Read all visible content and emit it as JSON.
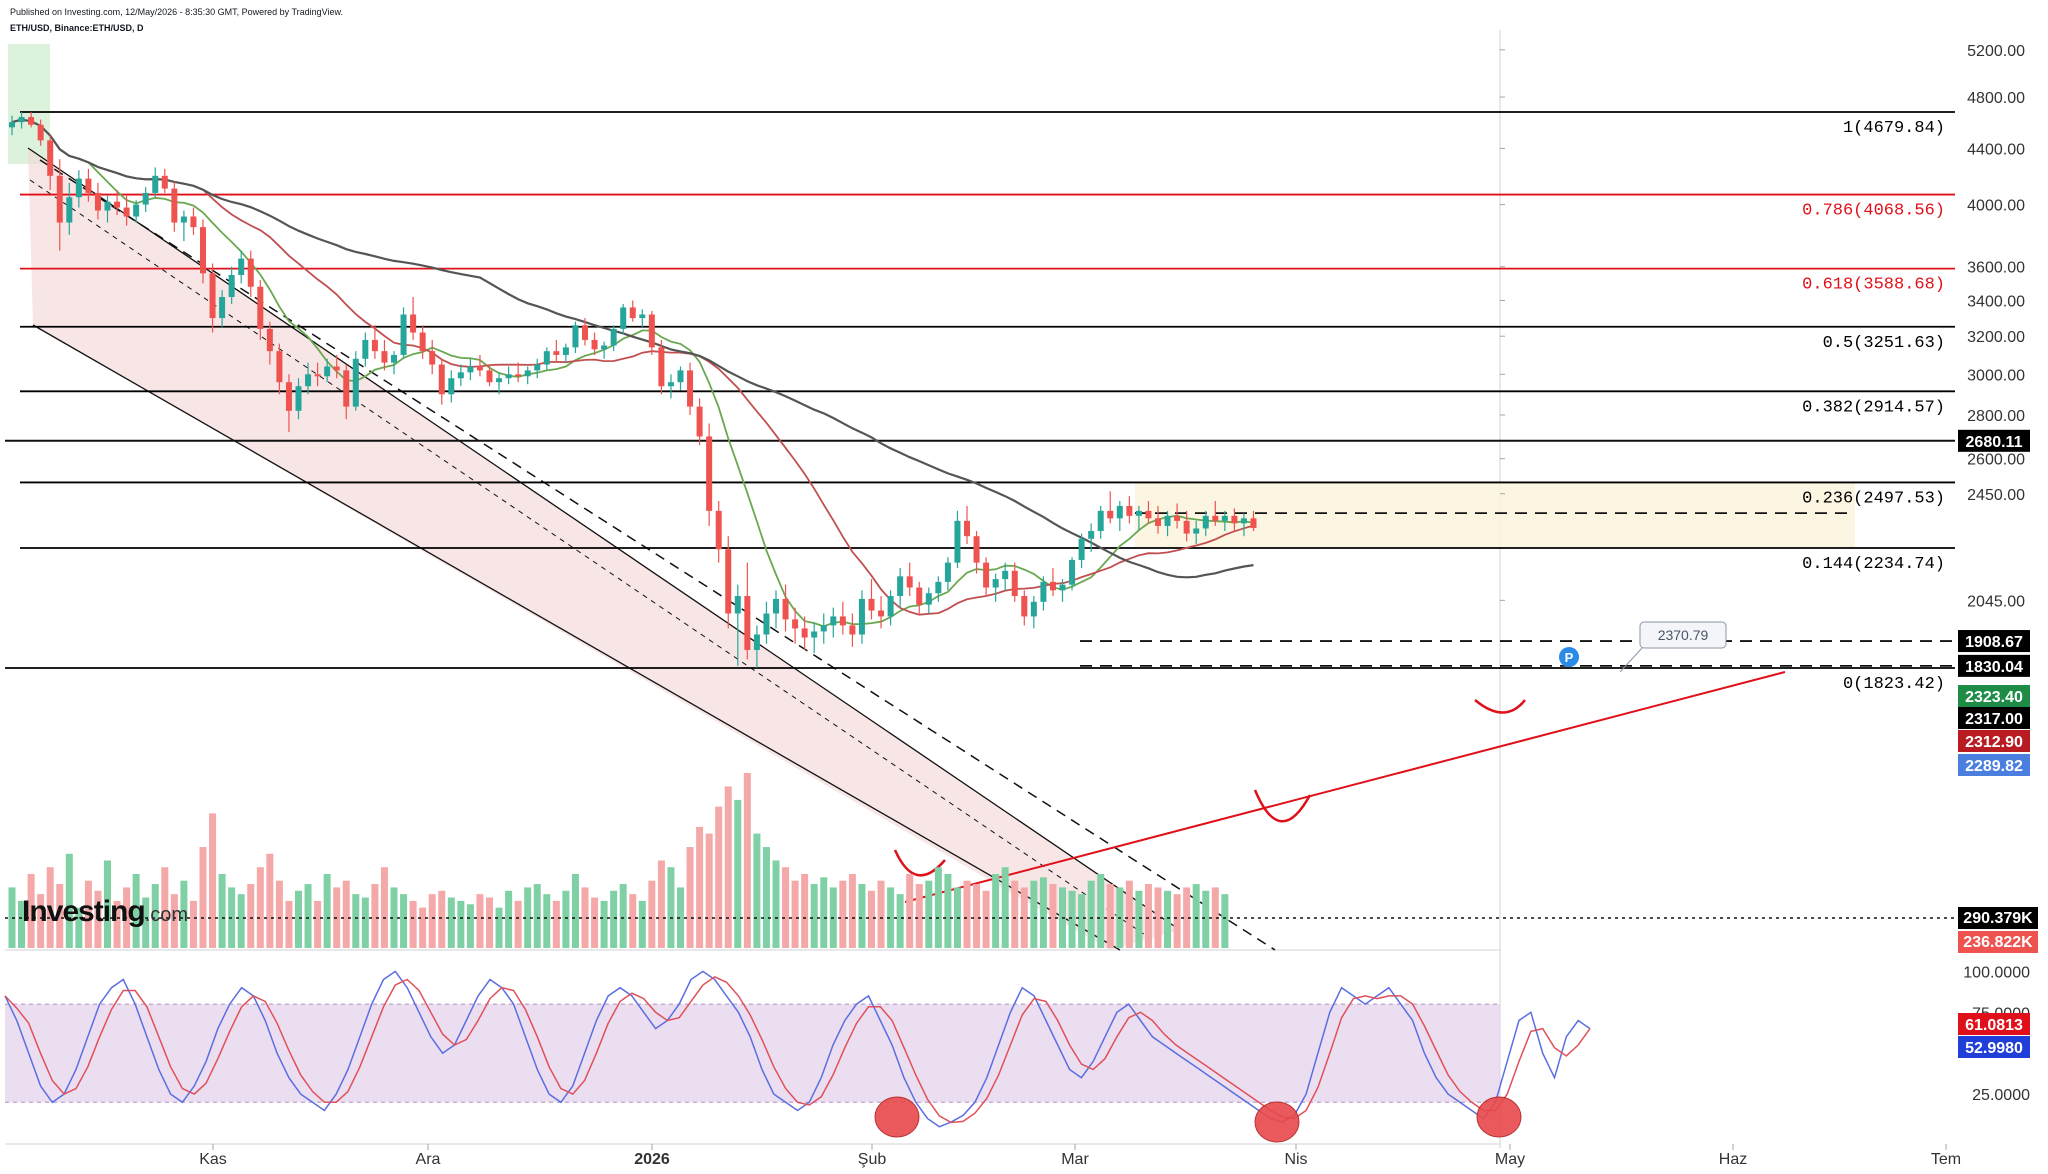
{
  "header": {
    "published": "Published on Investing.com, 12/May/2026 - 8:35:30 GMT, Powered by TradingView.",
    "symbol": "ETH/USD, Binance:ETH/USD, D"
  },
  "logo": {
    "brand": "Investing",
    "suffix": ".com"
  },
  "colors": {
    "up": "#26a69a",
    "down": "#ef5350",
    "fib_black": "#000000",
    "fib_red": "#e0101a",
    "channel_fill": "#f3d6d6",
    "range_fill": "#fbf3dd",
    "ma_fast": "#6aa84f",
    "ma_mid": "#c05050",
    "ma_slow": "#555555",
    "stoch_k": "#5b6ee1",
    "stoch_d": "#e0505a",
    "stoch_band": "#e4d3ec",
    "vol_up": "#7fd1a5",
    "vol_down": "#f4a8a8"
  },
  "chart_data": {
    "type": "candlestick",
    "symbol": "ETH/USD",
    "interval": "D",
    "y_scale": "log",
    "x_axis_labels": [
      "Kas",
      "Ara",
      "2026",
      "Şub",
      "Mar",
      "Nis",
      "May",
      "Haz",
      "Tem"
    ],
    "y_axis_labels": [
      "5200.00",
      "4800.00",
      "4400.00",
      "4000.00",
      "3600.00",
      "3400.00",
      "3200.00",
      "3000.00",
      "2800.00",
      "2600.00",
      "2450.00",
      "2045.00"
    ],
    "fib_levels": [
      {
        "label": "1(4679.84)",
        "ratio": "1",
        "value": 4679.84,
        "color": "black"
      },
      {
        "label": "0.786(4068.56)",
        "ratio": "0.786",
        "value": 4068.56,
        "color": "red"
      },
      {
        "label": "0.618(3588.68)",
        "ratio": "0.618",
        "value": 3588.68,
        "color": "red"
      },
      {
        "label": "0.5(3251.63)",
        "ratio": "0.5",
        "value": 3251.63,
        "color": "black"
      },
      {
        "label": "0.382(2914.57)",
        "ratio": "0.382",
        "value": 2914.57,
        "color": "black"
      },
      {
        "label": "0.236(2497.53)",
        "ratio": "0.236",
        "value": 2497.53,
        "color": "black"
      },
      {
        "label": "0.144(2234.74)",
        "ratio": "0.144",
        "value": 2234.74,
        "color": "black"
      },
      {
        "label": "0(1823.42)",
        "ratio": "0",
        "value": 1823.42,
        "color": "black"
      }
    ],
    "horizontal_levels": [
      {
        "label": "2680.11",
        "value": 2680.11,
        "style": "solid"
      },
      {
        "label": "1908.67",
        "value": 1908.67,
        "style": "dashed"
      },
      {
        "label": "1830.04",
        "value": 1830.04,
        "style": "dashed"
      },
      {
        "label": "2370.79",
        "value": 2370.79,
        "style": "dashed"
      }
    ],
    "price_tags": [
      {
        "label": "2323.40",
        "value": 2323.4,
        "color": "#1e8c47"
      },
      {
        "label": "2317.00",
        "value": 2317.0,
        "color": "#000000"
      },
      {
        "label": "2312.90",
        "value": 2312.9,
        "color": "#b81c22"
      },
      {
        "label": "2289.82",
        "value": 2289.82,
        "color": "#4a7fe0"
      }
    ],
    "callout": "2370.79",
    "range_box": {
      "high": 2497.53,
      "low": 2234.74
    },
    "ohlc": [
      [
        4560,
        4650,
        4500,
        4600
      ],
      [
        4600,
        4680,
        4550,
        4640
      ],
      [
        4640,
        4679,
        4560,
        4580
      ],
      [
        4580,
        4620,
        4420,
        4460
      ],
      [
        4460,
        4500,
        4100,
        4200
      ],
      [
        4200,
        4320,
        3700,
        3880
      ],
      [
        3880,
        4150,
        3800,
        4050
      ],
      [
        4050,
        4240,
        3980,
        4180
      ],
      [
        4180,
        4250,
        4020,
        4080
      ],
      [
        4080,
        4150,
        3900,
        3960
      ],
      [
        3960,
        4060,
        3880,
        4020
      ],
      [
        4020,
        4100,
        3930,
        3980
      ],
      [
        3980,
        4060,
        3860,
        3920
      ],
      [
        3920,
        4030,
        3880,
        4000
      ],
      [
        4000,
        4120,
        3950,
        4080
      ],
      [
        4080,
        4260,
        4050,
        4200
      ],
      [
        4200,
        4250,
        4080,
        4110
      ],
      [
        4110,
        4160,
        3820,
        3880
      ],
      [
        3880,
        3960,
        3760,
        3920
      ],
      [
        3920,
        3980,
        3800,
        3850
      ],
      [
        3850,
        3900,
        3500,
        3560
      ],
      [
        3560,
        3620,
        3220,
        3300
      ],
      [
        3300,
        3460,
        3250,
        3420
      ],
      [
        3420,
        3600,
        3380,
        3550
      ],
      [
        3550,
        3700,
        3500,
        3650
      ],
      [
        3650,
        3700,
        3420,
        3480
      ],
      [
        3480,
        3520,
        3180,
        3240
      ],
      [
        3240,
        3280,
        3050,
        3120
      ],
      [
        3120,
        3160,
        2900,
        2960
      ],
      [
        2960,
        3000,
        2720,
        2820
      ],
      [
        2820,
        2980,
        2780,
        2940
      ],
      [
        2940,
        3060,
        2900,
        3000
      ],
      [
        3000,
        3060,
        2940,
        2990
      ],
      [
        2990,
        3080,
        2960,
        3040
      ],
      [
        3040,
        3100,
        2980,
        3020
      ],
      [
        3020,
        3050,
        2780,
        2840
      ],
      [
        2840,
        3120,
        2820,
        3080
      ],
      [
        3080,
        3220,
        3040,
        3180
      ],
      [
        3180,
        3260,
        3080,
        3120
      ],
      [
        3120,
        3180,
        3020,
        3060
      ],
      [
        3060,
        3120,
        3000,
        3100
      ],
      [
        3100,
        3360,
        3080,
        3320
      ],
      [
        3320,
        3420,
        3180,
        3220
      ],
      [
        3220,
        3260,
        3080,
        3120
      ],
      [
        3120,
        3180,
        3000,
        3050
      ],
      [
        3050,
        3080,
        2850,
        2900
      ],
      [
        2900,
        3020,
        2860,
        2980
      ],
      [
        2980,
        3050,
        2940,
        3010
      ],
      [
        3010,
        3080,
        2970,
        3040
      ],
      [
        3040,
        3100,
        2990,
        3020
      ],
      [
        3020,
        3050,
        2940,
        2960
      ],
      [
        2960,
        3010,
        2900,
        2980
      ],
      [
        2980,
        3040,
        2950,
        3000
      ],
      [
        3000,
        3060,
        2960,
        2990
      ],
      [
        2990,
        3040,
        2950,
        3020
      ],
      [
        3020,
        3080,
        2980,
        3050
      ],
      [
        3050,
        3140,
        3020,
        3120
      ],
      [
        3120,
        3180,
        3060,
        3100
      ],
      [
        3100,
        3160,
        3060,
        3140
      ],
      [
        3140,
        3280,
        3110,
        3260
      ],
      [
        3260,
        3300,
        3150,
        3180
      ],
      [
        3180,
        3220,
        3100,
        3130
      ],
      [
        3130,
        3170,
        3080,
        3150
      ],
      [
        3150,
        3260,
        3120,
        3240
      ],
      [
        3240,
        3380,
        3210,
        3360
      ],
      [
        3360,
        3400,
        3280,
        3300
      ],
      [
        3300,
        3350,
        3250,
        3320
      ],
      [
        3320,
        3340,
        3100,
        3140
      ],
      [
        3140,
        3180,
        2900,
        2940
      ],
      [
        2940,
        3000,
        2880,
        2960
      ],
      [
        2960,
        3040,
        2920,
        3020
      ],
      [
        3020,
        3060,
        2800,
        2840
      ],
      [
        2840,
        2880,
        2660,
        2700
      ],
      [
        2700,
        2760,
        2320,
        2380
      ],
      [
        2380,
        2420,
        2180,
        2230
      ],
      [
        2230,
        2280,
        1950,
        2000
      ],
      [
        2000,
        2100,
        1830,
        2060
      ],
      [
        2060,
        2180,
        1850,
        1880
      ],
      [
        1880,
        1960,
        1824,
        1930
      ],
      [
        1930,
        2040,
        1900,
        2000
      ],
      [
        2000,
        2080,
        1950,
        2050
      ],
      [
        2050,
        2100,
        1940,
        1980
      ],
      [
        1980,
        2020,
        1900,
        1950
      ],
      [
        1950,
        1990,
        1880,
        1920
      ],
      [
        1920,
        1970,
        1870,
        1940
      ],
      [
        1940,
        2000,
        1900,
        1960
      ],
      [
        1960,
        2020,
        1920,
        1990
      ],
      [
        1990,
        2040,
        1930,
        1960
      ],
      [
        1960,
        2000,
        1890,
        1930
      ],
      [
        1930,
        2080,
        1900,
        2050
      ],
      [
        2050,
        2120,
        1980,
        2010
      ],
      [
        2010,
        2060,
        1950,
        1990
      ],
      [
        1990,
        2080,
        1960,
        2060
      ],
      [
        2060,
        2160,
        2020,
        2130
      ],
      [
        2130,
        2180,
        2060,
        2090
      ],
      [
        2090,
        2110,
        2000,
        2030
      ],
      [
        2030,
        2090,
        2000,
        2070
      ],
      [
        2070,
        2130,
        2040,
        2110
      ],
      [
        2110,
        2200,
        2080,
        2180
      ],
      [
        2180,
        2380,
        2160,
        2340
      ],
      [
        2340,
        2400,
        2250,
        2280
      ],
      [
        2280,
        2300,
        2140,
        2180
      ],
      [
        2180,
        2200,
        2060,
        2090
      ],
      [
        2090,
        2140,
        2040,
        2120
      ],
      [
        2120,
        2180,
        2080,
        2150
      ],
      [
        2150,
        2180,
        2040,
        2060
      ],
      [
        2060,
        2080,
        1960,
        1990
      ],
      [
        1990,
        2060,
        1950,
        2040
      ],
      [
        2040,
        2130,
        2010,
        2110
      ],
      [
        2110,
        2160,
        2060,
        2080
      ],
      [
        2080,
        2120,
        2040,
        2100
      ],
      [
        2100,
        2200,
        2080,
        2190
      ],
      [
        2190,
        2290,
        2160,
        2270
      ],
      [
        2270,
        2330,
        2220,
        2300
      ],
      [
        2300,
        2400,
        2270,
        2380
      ],
      [
        2380,
        2460,
        2330,
        2350
      ],
      [
        2350,
        2420,
        2300,
        2400
      ],
      [
        2400,
        2440,
        2330,
        2360
      ],
      [
        2360,
        2400,
        2300,
        2380
      ],
      [
        2380,
        2420,
        2330,
        2350
      ],
      [
        2350,
        2400,
        2290,
        2320
      ],
      [
        2320,
        2380,
        2280,
        2360
      ],
      [
        2360,
        2410,
        2310,
        2340
      ],
      [
        2340,
        2380,
        2260,
        2290
      ],
      [
        2290,
        2340,
        2250,
        2310
      ],
      [
        2310,
        2380,
        2280,
        2360
      ],
      [
        2360,
        2420,
        2320,
        2340
      ],
      [
        2340,
        2380,
        2300,
        2360
      ],
      [
        2360,
        2390,
        2300,
        2330
      ],
      [
        2330,
        2370,
        2280,
        2350
      ],
      [
        2350,
        2380,
        2300,
        2312
      ]
    ],
    "moving_averages": [
      {
        "name": "fast",
        "color": "#6aa84f",
        "period": 9
      },
      {
        "name": "mid",
        "color": "#c05050",
        "period": 21
      },
      {
        "name": "slow",
        "color": "#555555",
        "period": 50
      }
    ],
    "volume": {
      "labels": [
        "290.379K",
        "236.822K"
      ],
      "values": [
        90,
        70,
        110,
        80,
        120,
        95,
        140,
        60,
        100,
        85,
        130,
        70,
        90,
        110,
        75,
        95,
        120,
        80,
        100,
        70,
        150,
        200,
        110,
        90,
        80,
        95,
        120,
        140,
        100,
        70,
        85,
        95,
        70,
        110,
        90,
        100,
        80,
        75,
        95,
        120,
        90,
        80,
        70,
        60,
        80,
        85,
        75,
        70,
        65,
        80,
        75,
        60,
        85,
        70,
        90,
        95,
        80,
        70,
        85,
        110,
        90,
        75,
        70,
        85,
        95,
        80,
        70,
        100,
        130,
        120,
        90,
        150,
        180,
        170,
        210,
        240,
        220,
        260,
        170,
        150,
        130,
        120,
        100,
        110,
        95,
        105,
        90,
        100,
        110,
        95,
        85,
        100,
        90,
        80,
        110,
        95,
        100,
        120,
        110,
        90,
        100,
        95,
        85,
        110,
        120,
        100,
        90,
        100,
        105,
        95,
        90,
        85,
        80,
        100,
        110,
        95,
        90,
        100,
        85,
        95,
        90,
        85,
        80,
        90,
        95,
        85,
        90,
        80
      ]
    },
    "stochastic": {
      "ticks": [
        "100.0000",
        "75.0000",
        "25.0000"
      ],
      "k_label": "52.9980",
      "d_label": "61.0813",
      "k": 52.998,
      "d": 61.0813,
      "band": [
        20,
        80
      ],
      "k_series": [
        85,
        70,
        50,
        30,
        20,
        25,
        40,
        60,
        80,
        90,
        95,
        80,
        60,
        40,
        25,
        20,
        30,
        45,
        65,
        80,
        90,
        85,
        70,
        50,
        35,
        25,
        20,
        15,
        25,
        40,
        60,
        80,
        95,
        100,
        90,
        75,
        60,
        50,
        55,
        70,
        85,
        95,
        90,
        80,
        60,
        40,
        25,
        20,
        30,
        50,
        70,
        85,
        90,
        85,
        75,
        65,
        70,
        80,
        95,
        100,
        95,
        85,
        75,
        60,
        40,
        25,
        20,
        15,
        20,
        35,
        55,
        70,
        80,
        85,
        70,
        55,
        35,
        20,
        10,
        5,
        8,
        12,
        20,
        35,
        55,
        75,
        90,
        85,
        70,
        55,
        40,
        35,
        45,
        60,
        75,
        80,
        70,
        60,
        55,
        50,
        45,
        40,
        35,
        30,
        25,
        20,
        15,
        10,
        8,
        12,
        25,
        50,
        75,
        90,
        85,
        80,
        85,
        90,
        80,
        70,
        50,
        35,
        25,
        20,
        15,
        10,
        20,
        45,
        70,
        75,
        50,
        35,
        60,
        70,
        65
      ]
    }
  }
}
